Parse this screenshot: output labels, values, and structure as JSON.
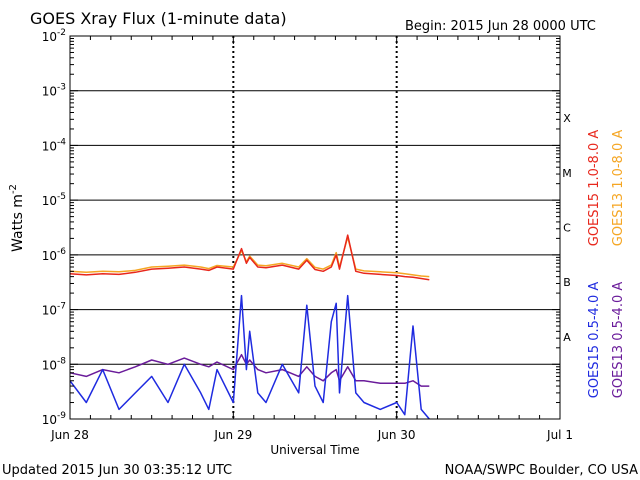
{
  "chart_data": {
    "type": "line",
    "title": "GOES Xray Flux (1-minute data)",
    "begin_label": "Begin:  2015 Jun 28 0000 UTC",
    "ylabel_main": "Watts m",
    "ylabel_exp": "-2",
    "xlabel": "Universal Time",
    "y_scale": "log",
    "ylim": [
      1e-09,
      0.01
    ],
    "xlim_days": [
      0,
      3
    ],
    "y_ticks": [
      {
        "exp": -9,
        "label_base": "10",
        "label_exp": "-9"
      },
      {
        "exp": -8,
        "label_base": "10",
        "label_exp": "-8"
      },
      {
        "exp": -7,
        "label_base": "10",
        "label_exp": "-7"
      },
      {
        "exp": -6,
        "label_base": "10",
        "label_exp": "-6"
      },
      {
        "exp": -5,
        "label_base": "10",
        "label_exp": "-5"
      },
      {
        "exp": -4,
        "label_base": "10",
        "label_exp": "-4"
      },
      {
        "exp": -3,
        "label_base": "10",
        "label_exp": "-3"
      },
      {
        "exp": -2,
        "label_base": "10",
        "label_exp": "-2"
      }
    ],
    "x_ticks": [
      {
        "day": 0,
        "label": "Jun 28"
      },
      {
        "day": 1,
        "label": "Jun 29"
      },
      {
        "day": 2,
        "label": "Jun 30"
      },
      {
        "day": 3,
        "label": "Jul 1"
      }
    ],
    "flare_classes": [
      {
        "label": "A",
        "exp": -7.5
      },
      {
        "label": "B",
        "exp": -6.5
      },
      {
        "label": "C",
        "exp": -5.5
      },
      {
        "label": "M",
        "exp": -4.5
      },
      {
        "label": "X",
        "exp": -3.5
      }
    ],
    "series": [
      {
        "name": "GOES15 1.0-8.0 A",
        "color": "#e8271c",
        "x": [
          0,
          0.1,
          0.2,
          0.3,
          0.4,
          0.5,
          0.6,
          0.7,
          0.8,
          0.85,
          0.9,
          1.0,
          1.05,
          1.08,
          1.1,
          1.15,
          1.2,
          1.3,
          1.4,
          1.45,
          1.5,
          1.55,
          1.6,
          1.63,
          1.65,
          1.7,
          1.75,
          1.8,
          1.9,
          2.0,
          2.05,
          2.1,
          2.15,
          2.2
        ],
        "y": [
          4.5e-07,
          4.3e-07,
          4.5e-07,
          4.4e-07,
          4.8e-07,
          5.5e-07,
          5.7e-07,
          6e-07,
          5.5e-07,
          5.2e-07,
          6e-07,
          5.5e-07,
          1.3e-06,
          7e-07,
          9e-07,
          6e-07,
          5.8e-07,
          6.5e-07,
          5.5e-07,
          8e-07,
          5.4e-07,
          5e-07,
          6e-07,
          1e-06,
          5.5e-07,
          2.3e-06,
          5e-07,
          4.6e-07,
          4.4e-07,
          4.2e-07,
          4e-07,
          3.9e-07,
          3.7e-07,
          3.5e-07
        ]
      },
      {
        "name": "GOES13 1.0-8.0 A",
        "color": "#f5a623",
        "x": [
          0,
          0.1,
          0.2,
          0.3,
          0.4,
          0.5,
          0.6,
          0.7,
          0.8,
          0.85,
          0.9,
          1.0,
          1.05,
          1.08,
          1.1,
          1.15,
          1.2,
          1.3,
          1.4,
          1.45,
          1.5,
          1.55,
          1.6,
          1.63,
          1.65,
          1.7,
          1.75,
          1.8,
          1.9,
          2.0,
          2.05,
          2.1,
          2.15,
          2.2
        ],
        "y": [
          5e-07,
          4.8e-07,
          5e-07,
          4.9e-07,
          5.2e-07,
          6e-07,
          6.2e-07,
          6.5e-07,
          6e-07,
          5.6e-07,
          6.4e-07,
          6e-07,
          1.2e-06,
          7.5e-07,
          9.5e-07,
          6.5e-07,
          6.3e-07,
          7e-07,
          6e-07,
          8.5e-07,
          5.9e-07,
          5.5e-07,
          6.5e-07,
          1.1e-06,
          6e-07,
          2.1e-06,
          5.5e-07,
          5.1e-07,
          4.9e-07,
          4.7e-07,
          4.5e-07,
          4.3e-07,
          4.1e-07,
          4e-07
        ]
      },
      {
        "name": "GOES15 0.5-4.0 A",
        "color": "#1f2be0",
        "x": [
          0,
          0.1,
          0.2,
          0.3,
          0.4,
          0.5,
          0.6,
          0.7,
          0.8,
          0.85,
          0.9,
          1.0,
          1.05,
          1.08,
          1.1,
          1.15,
          1.2,
          1.3,
          1.4,
          1.45,
          1.5,
          1.55,
          1.6,
          1.63,
          1.65,
          1.7,
          1.75,
          1.8,
          1.9,
          2.0,
          2.05,
          2.1,
          2.15,
          2.2
        ],
        "y": [
          5e-09,
          2e-09,
          8e-09,
          1.5e-09,
          3e-09,
          6e-09,
          2e-09,
          1e-08,
          3e-09,
          1.5e-09,
          8e-09,
          2e-09,
          1.8e-07,
          8e-09,
          4e-08,
          3e-09,
          2e-09,
          1e-08,
          3e-09,
          1.2e-07,
          4e-09,
          2e-09,
          6e-08,
          1.3e-07,
          3e-09,
          1.8e-07,
          3e-09,
          2e-09,
          1.5e-09,
          2e-09,
          1.2e-09,
          5e-08,
          1.5e-09,
          1e-09
        ]
      },
      {
        "name": "GOES13 0.5-4.0 A",
        "color": "#6a1b9a",
        "x": [
          0,
          0.1,
          0.2,
          0.3,
          0.4,
          0.5,
          0.6,
          0.7,
          0.8,
          0.85,
          0.9,
          1.0,
          1.05,
          1.08,
          1.1,
          1.15,
          1.2,
          1.3,
          1.4,
          1.45,
          1.5,
          1.55,
          1.6,
          1.63,
          1.65,
          1.7,
          1.75,
          1.8,
          1.9,
          2.0,
          2.05,
          2.1,
          2.15,
          2.2
        ],
        "y": [
          7e-09,
          6e-09,
          8e-09,
          7e-09,
          9e-09,
          1.2e-08,
          1e-08,
          1.3e-08,
          1e-08,
          9e-09,
          1.1e-08,
          8e-09,
          1.5e-08,
          1e-08,
          1.2e-08,
          8e-09,
          7e-09,
          8e-09,
          6e-09,
          9e-09,
          6e-09,
          5e-09,
          7e-09,
          8e-09,
          5e-09,
          9e-09,
          5e-09,
          5e-09,
          4.5e-09,
          4.5e-09,
          4.5e-09,
          5e-09,
          4e-09,
          4e-09
        ]
      }
    ]
  },
  "footer": {
    "updated": "Updated 2015 Jun 30 03:35:12 UTC",
    "credit": "NOAA/SWPC Boulder, CO USA"
  }
}
